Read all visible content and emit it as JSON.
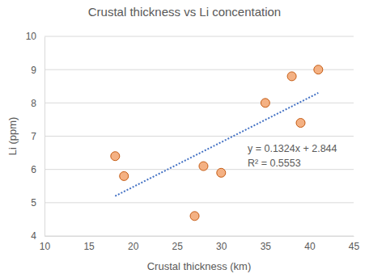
{
  "chart_data": {
    "type": "scatter",
    "title": "Crustal thickness vs Li concentation",
    "x_label": "Crustal thickness (km)",
    "y_label": "Li (ppm)",
    "series": [
      {
        "type": "scatter",
        "marker": "circle",
        "color": "#f4b183",
        "x": [
          18,
          19,
          27,
          28,
          30,
          35,
          38,
          39,
          41
        ],
        "values": [
          6.4,
          5.8,
          4.6,
          6.1,
          5.9,
          8.0,
          8.8,
          7.4,
          9.0
        ]
      },
      {
        "type": "line",
        "line_style": "dotted",
        "color": "#4472c4",
        "x": [
          18,
          41
        ],
        "values": [
          5.2,
          8.3
        ]
      }
    ],
    "annotations": [
      "y = 0.1324x + 2.844",
      "R² = 0.5553"
    ],
    "xlim": [
      10,
      45
    ],
    "xticks": [
      10,
      15,
      20,
      25,
      30,
      35,
      40,
      45
    ],
    "ylim": [
      4,
      10
    ],
    "yticks": [
      4,
      5,
      6,
      7,
      8,
      9,
      10
    ],
    "grid": true
  }
}
